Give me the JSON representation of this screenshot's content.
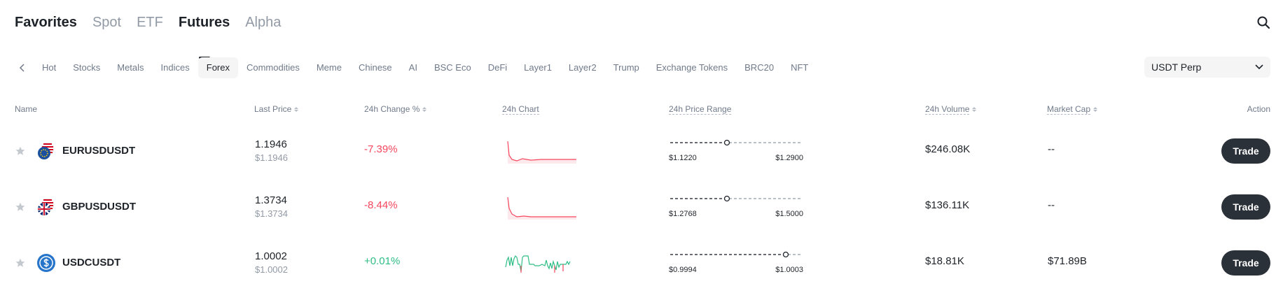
{
  "top_tabs": [
    {
      "label": "Favorites"
    },
    {
      "label": "Spot"
    },
    {
      "label": "ETF"
    },
    {
      "label": "Futures"
    },
    {
      "label": "Alpha"
    }
  ],
  "chips": [
    "Hot",
    "Stocks",
    "Metals",
    "Indices",
    "Forex",
    "Commodities",
    "Meme",
    "Chinese",
    "AI",
    "BSC Eco",
    "DeFi",
    "Layer1",
    "Layer2",
    "Trump",
    "Exchange Tokens",
    "BRC20",
    "NFT"
  ],
  "active_chip": "Forex",
  "perp_select": {
    "value": "USDT Perp"
  },
  "columns": {
    "name": "Name",
    "last_price": "Last Price",
    "change": "24h Change %",
    "chart": "24h Chart",
    "range": "24h Price Range",
    "volume": "24h Volume",
    "market_cap": "Market Cap",
    "action": "Action"
  },
  "rows": [
    {
      "symbol": "EURUSDUSDT",
      "price": "1.1946",
      "sub_price": "$1.1946",
      "change": "-7.39%",
      "direction": "down",
      "range_low": "$1.1220",
      "range_high": "$1.2900",
      "range_position": 0.43,
      "volume": "$246.08K",
      "market_cap": "--",
      "action": "Trade",
      "icon": "eur-usd-flag-icon"
    },
    {
      "symbol": "GBPUSDUSDT",
      "price": "1.3734",
      "sub_price": "$1.3734",
      "change": "-8.44%",
      "direction": "down",
      "range_low": "$1.2768",
      "range_high": "$1.5000",
      "range_position": 0.43,
      "volume": "$136.11K",
      "market_cap": "--",
      "action": "Trade",
      "icon": "gbp-usd-flag-icon"
    },
    {
      "symbol": "USDCUSDT",
      "price": "1.0002",
      "sub_price": "$1.0002",
      "change": "+0.01%",
      "direction": "up",
      "range_low": "$0.9994",
      "range_high": "$1.0003",
      "range_position": 0.88,
      "volume": "$18.81K",
      "market_cap": "$71.89B",
      "action": "Trade",
      "icon": "usdc-coin-icon"
    }
  ],
  "colors": {
    "negative": "#f6465d",
    "positive": "#2ebd85",
    "trade_button": "#2b3139"
  }
}
